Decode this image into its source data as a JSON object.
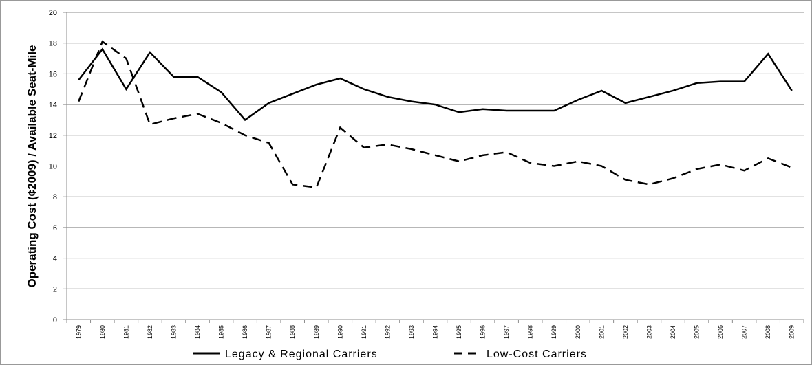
{
  "chart_data": {
    "type": "line",
    "y_label": "Operating Cost (¢2009) / Available Seat-Mile",
    "categories": [
      "1979",
      "1980",
      "1981",
      "1982",
      "1983",
      "1984",
      "1985",
      "1986",
      "1987",
      "1988",
      "1989",
      "1990",
      "1991",
      "1992",
      "1993",
      "1994",
      "1995",
      "1996",
      "1997",
      "1998",
      "1999",
      "2000",
      "2001",
      "2002",
      "2003",
      "2004",
      "2005",
      "2006",
      "2007",
      "2008",
      "2009"
    ],
    "series": [
      {
        "name": "Legacy & Regional Carriers",
        "color": "#000000",
        "dash": "solid",
        "values": [
          15.6,
          17.6,
          15.0,
          17.4,
          15.8,
          15.8,
          14.8,
          13.0,
          14.1,
          14.7,
          15.3,
          15.7,
          15.0,
          14.5,
          14.2,
          14.0,
          13.5,
          13.7,
          13.6,
          13.6,
          13.6,
          14.3,
          14.9,
          14.1,
          14.5,
          14.9,
          15.4,
          15.5,
          15.5,
          17.3,
          14.9
        ]
      },
      {
        "name": "Low-Cost Carriers",
        "color": "#000000",
        "dash": "dashed",
        "values": [
          14.2,
          18.1,
          17.0,
          12.7,
          13.1,
          13.4,
          12.8,
          12.0,
          11.5,
          8.8,
          8.6,
          12.5,
          11.2,
          11.4,
          11.1,
          10.7,
          10.3,
          10.7,
          10.9,
          10.2,
          10.0,
          10.3,
          10.0,
          9.1,
          8.8,
          9.2,
          9.8,
          10.1,
          9.7,
          10.5,
          9.9
        ]
      }
    ],
    "ylim": [
      0,
      20
    ],
    "yticks": [
      0,
      2,
      4,
      6,
      8,
      10,
      12,
      14,
      16,
      18,
      20
    ],
    "grid": true,
    "legend": "bottom"
  }
}
